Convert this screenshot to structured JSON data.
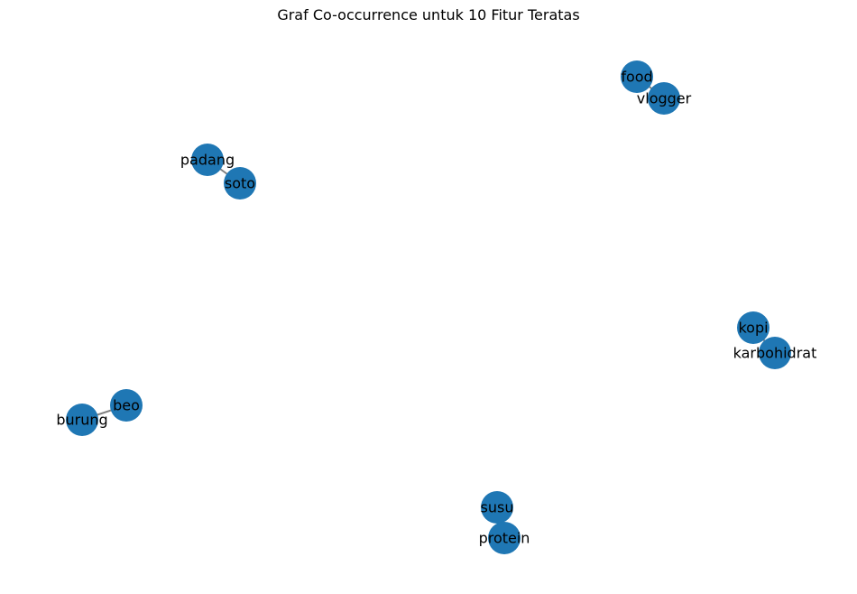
{
  "title": "Graf Co-occurrence untuk 10 Fitur Teratas",
  "colors": {
    "node": "#1f77b4",
    "edge": "#808080",
    "label": "#000000"
  },
  "nodes": [
    {
      "id": "food",
      "label": "food"
    },
    {
      "id": "vlogger",
      "label": "vlogger"
    },
    {
      "id": "padang",
      "label": "padang"
    },
    {
      "id": "soto",
      "label": "soto"
    },
    {
      "id": "kopi",
      "label": "kopi"
    },
    {
      "id": "karbohidrat",
      "label": "karbohidrat"
    },
    {
      "id": "beo",
      "label": "beo"
    },
    {
      "id": "burung",
      "label": "burung"
    },
    {
      "id": "susu",
      "label": "susu"
    },
    {
      "id": "protein",
      "label": "protein"
    }
  ],
  "edges": [
    {
      "source": "food",
      "target": "vlogger"
    },
    {
      "source": "padang",
      "target": "soto"
    },
    {
      "source": "kopi",
      "target": "karbohidrat"
    },
    {
      "source": "beo",
      "target": "burung"
    },
    {
      "source": "susu",
      "target": "protein"
    }
  ]
}
